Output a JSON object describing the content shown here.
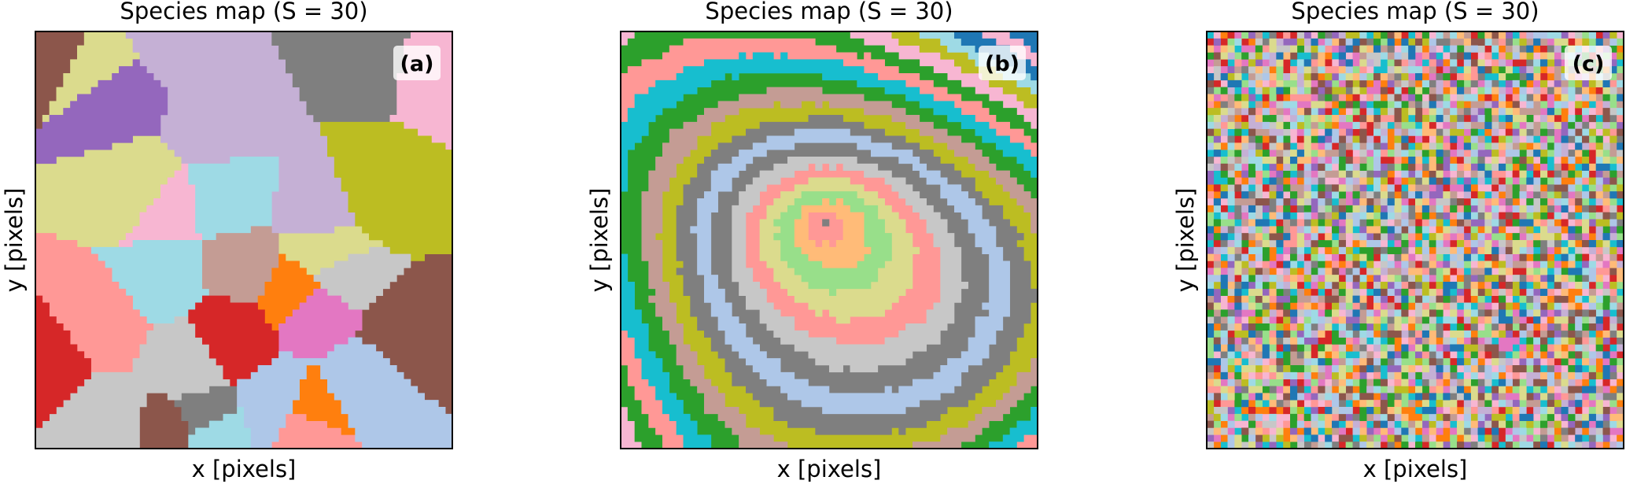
{
  "panels": [
    {
      "title": "Species map (S = 30)",
      "label": "(a)",
      "xlabel": "x [pixels]",
      "ylabel": "y [pixels]"
    },
    {
      "title": "Species map (S = 30)",
      "label": "(b)",
      "xlabel": "x [pixels]",
      "ylabel": "y [pixels]"
    },
    {
      "title": "Species map (S = 30)",
      "label": "(c)",
      "xlabel": "x [pixels]",
      "ylabel": "y [pixels]"
    }
  ]
}
